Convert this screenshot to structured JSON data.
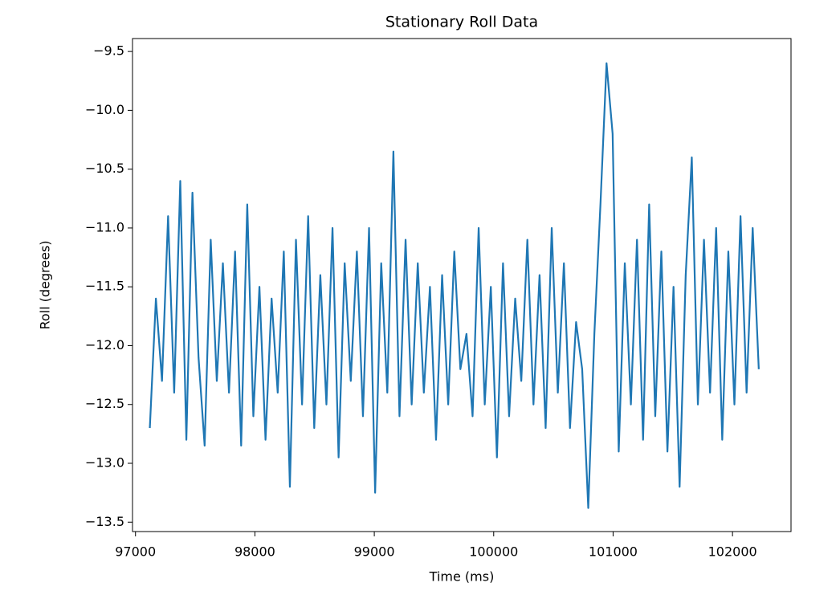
{
  "chart_data": {
    "type": "line",
    "title": "Stationary Roll Data",
    "x_label": "Time (ms)",
    "y_label": "Roll (degrees)",
    "x": [
      97120,
      97171,
      97222,
      97273,
      97324,
      97375,
      97426,
      97477,
      97528,
      97579,
      97630,
      97681,
      97732,
      97783,
      97834,
      97885,
      97936,
      97987,
      98038,
      98089,
      98140,
      98191,
      98242,
      98293,
      98344,
      98395,
      98446,
      98497,
      98548,
      98599,
      98650,
      98701,
      98752,
      98803,
      98854,
      98905,
      98956,
      99007,
      99058,
      99109,
      99160,
      99211,
      99262,
      99313,
      99364,
      99415,
      99466,
      99517,
      99568,
      99619,
      99670,
      99721,
      99772,
      99823,
      99874,
      99925,
      99976,
      100027,
      100078,
      100129,
      100180,
      100231,
      100282,
      100333,
      100384,
      100435,
      100486,
      100537,
      100588,
      100639,
      100690,
      100741,
      100792,
      100843,
      100894,
      100945,
      100996,
      101047,
      101098,
      101149,
      101200,
      101251,
      101302,
      101353,
      101404,
      101455,
      101506,
      101557,
      101608,
      101659,
      101710,
      101761,
      101812,
      101863,
      101914,
      101965,
      102016,
      102067,
      102118,
      102169,
      102220
    ],
    "series": [
      {
        "name": "Roll",
        "color": "#1f77b4",
        "values": [
          -12.7,
          -11.6,
          -12.3,
          -10.9,
          -12.4,
          -10.6,
          -12.8,
          -10.7,
          -12.1,
          -12.85,
          -11.1,
          -12.3,
          -11.3,
          -12.4,
          -11.2,
          -12.85,
          -10.8,
          -12.6,
          -11.5,
          -12.8,
          -11.6,
          -12.4,
          -11.2,
          -13.2,
          -11.1,
          -12.5,
          -10.9,
          -12.7,
          -11.4,
          -12.5,
          -11.0,
          -12.95,
          -11.3,
          -12.3,
          -11.2,
          -12.6,
          -11.0,
          -13.25,
          -11.3,
          -12.4,
          -10.35,
          -12.6,
          -11.1,
          -12.5,
          -11.3,
          -12.4,
          -11.5,
          -12.8,
          -11.4,
          -12.5,
          -11.2,
          -12.2,
          -11.9,
          -12.6,
          -11.0,
          -12.5,
          -11.5,
          -12.95,
          -11.3,
          -12.6,
          -11.6,
          -12.3,
          -11.1,
          -12.5,
          -11.4,
          -12.7,
          -11.0,
          -12.4,
          -11.3,
          -12.7,
          -11.8,
          -12.2,
          -13.38,
          -11.9,
          -10.8,
          -9.6,
          -10.2,
          -12.9,
          -11.3,
          -12.5,
          -11.1,
          -12.8,
          -10.8,
          -12.6,
          -11.2,
          -12.9,
          -11.5,
          -13.2,
          -11.4,
          -10.4,
          -12.5,
          -11.1,
          -12.4,
          -11.0,
          -12.8,
          -11.2,
          -12.5,
          -10.9,
          -12.4,
          -11.0,
          -12.2
        ]
      }
    ],
    "xlim": [
      96975,
      102490
    ],
    "ylim": [
      -13.58,
      -9.39
    ],
    "xticks": [
      97000,
      98000,
      99000,
      100000,
      101000,
      102000
    ],
    "yticks": [
      {
        "value": -13.5,
        "label": "−13.5"
      },
      {
        "value": -13.0,
        "label": "−13.0"
      },
      {
        "value": -12.5,
        "label": "−12.5"
      },
      {
        "value": -12.0,
        "label": "−12.0"
      },
      {
        "value": -11.5,
        "label": "−11.5"
      },
      {
        "value": -11.0,
        "label": "−11.0"
      },
      {
        "value": -10.5,
        "label": "−10.5"
      },
      {
        "value": -10.0,
        "label": "−10.0"
      },
      {
        "value": -9.5,
        "label": "−9.5"
      }
    ]
  }
}
